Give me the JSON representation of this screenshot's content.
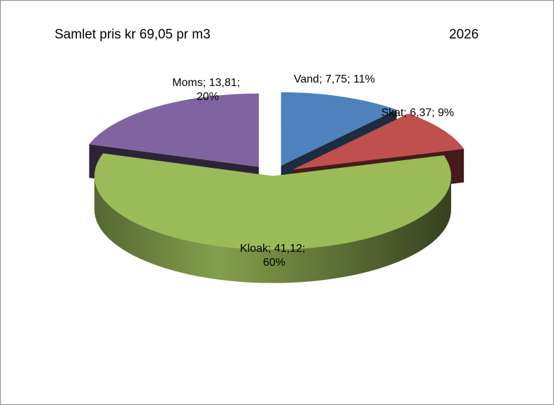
{
  "chart_data": {
    "type": "pie3d",
    "title": "Samlet pris kr 69,05 pr m3",
    "subtitle": "2026",
    "categories": [
      "Vand",
      "Skat",
      "Kloak",
      "Moms"
    ],
    "values": [
      7.75,
      6.37,
      41.12,
      13.81
    ],
    "value_labels": [
      "7,75",
      "6,37",
      "41,12",
      "13,81"
    ],
    "percent_labels": [
      "11%",
      "9%",
      "60%",
      "20%"
    ],
    "label_separator": "; ",
    "colors": [
      "#4f81bd",
      "#c0504d",
      "#9bbb59",
      "#8064a2"
    ]
  }
}
